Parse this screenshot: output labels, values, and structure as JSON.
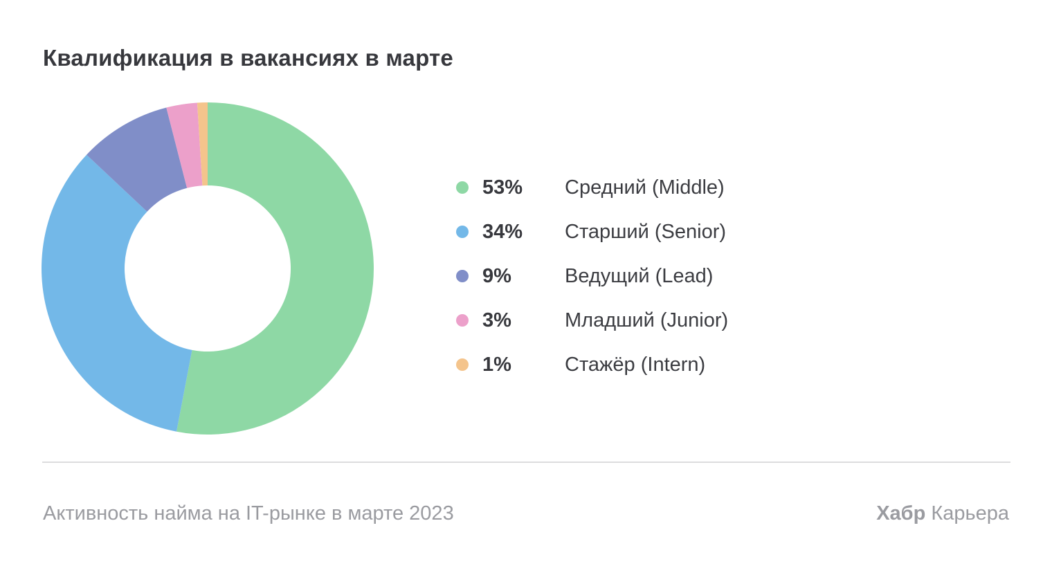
{
  "title": "Квалификация в вакансиях в марте",
  "chart_data": {
    "type": "pie",
    "subtype": "donut",
    "title": "Квалификация в вакансиях в марте",
    "inner_radius_ratio": 0.5,
    "start_angle_deg": 0,
    "direction": "clockwise",
    "legend_position": "right",
    "series": [
      {
        "label": "Средний (Middle)",
        "percent_label": "53%",
        "value": 53,
        "color": "#8ED8A5"
      },
      {
        "label": "Старший (Senior)",
        "percent_label": "34%",
        "value": 34,
        "color": "#73B8E8"
      },
      {
        "label": "Ведущий (Lead)",
        "percent_label": "9%",
        "value": 9,
        "color": "#808EC8"
      },
      {
        "label": "Младший (Junior)",
        "percent_label": "3%",
        "value": 3,
        "color": "#ECA0CA"
      },
      {
        "label": "Стажёр (Intern)",
        "percent_label": "1%",
        "value": 1,
        "color": "#F4C48C"
      }
    ]
  },
  "footer": {
    "source": "Активность найма на IT-рынке в марте 2023",
    "brand_bold": "Хабр",
    "brand_regular": " Карьера"
  }
}
